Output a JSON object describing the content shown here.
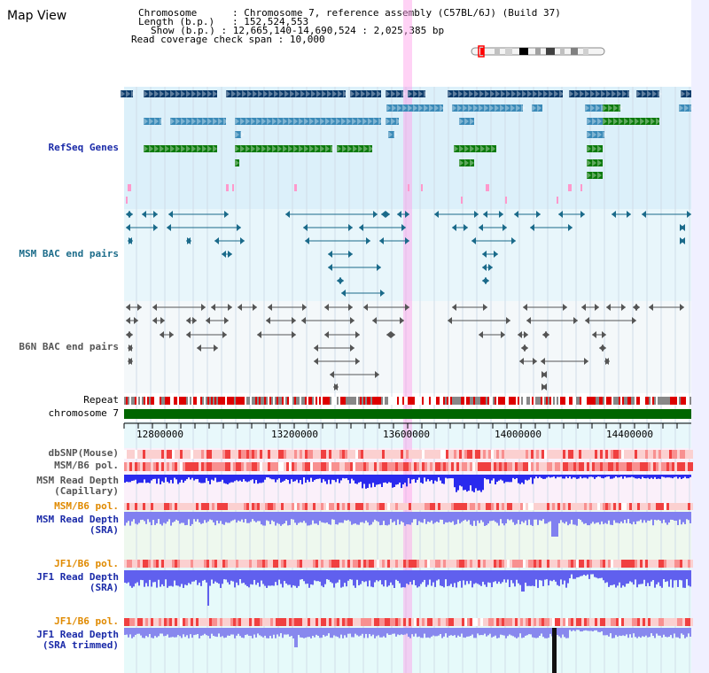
{
  "header": {
    "title": "Map View",
    "chromosome_label": "Chromosome",
    "chromosome_value": "Chromosome 7, reference assembly (C57BL/6J) (Build 37)",
    "length_label": "Length (b.p.)",
    "length_value": "152,524,553",
    "show_label": "Show (b.p.)",
    "show_value": "12,665,140-14,690,524 : 2,025,385 bp",
    "coverage_label": "Read coverage check span",
    "coverage_value": "10,000"
  },
  "tracks": {
    "refseq": "RefSeq Genes",
    "msm_bac": "MSM BAC end pairs",
    "b6n_bac": "B6N BAC end pairs",
    "repeat": "Repeat",
    "chromosome": "chromosome 7",
    "dbsnp": "dbSNP(Mouse)",
    "msm_b6_pol_1": "MSM/B6 pol.",
    "msm_read_depth_cap_1": "MSM Read Depth",
    "msm_read_depth_cap_2": "(Capillary)",
    "msm_b6_pol_2": "MSM/B6 pol.",
    "msm_read_depth_sra_1": "MSM Read Depth",
    "msm_read_depth_sra_2": "(SRA)",
    "jf1_b6_pol_1": "JF1/B6 pol.",
    "jf1_read_depth_sra_1": "JF1 Read Depth",
    "jf1_read_depth_sra_2": "(SRA)",
    "jf1_b6_pol_2": "JF1/B6 pol.",
    "jf1_read_depth_trim_1": "JF1 Read Depth",
    "jf1_read_depth_trim_2": "(SRA trimmed)"
  },
  "axis": {
    "ticks": [
      "12800000",
      "13200000",
      "13600000",
      "14000000",
      "14400000"
    ]
  },
  "colors": {
    "refseq_dark": "#0a3a6a",
    "refseq_mid": "#3a8ab8",
    "refseq_green": "#0a7a0a",
    "bac_line": "#1a6a8a",
    "b6n_line": "#555555",
    "highlight": "#ff9be8",
    "chromosome_bar": "#006600",
    "depth_blue": "#3a3aff"
  },
  "ideogram": {
    "icon": "chromosome-ideogram-icon"
  }
}
